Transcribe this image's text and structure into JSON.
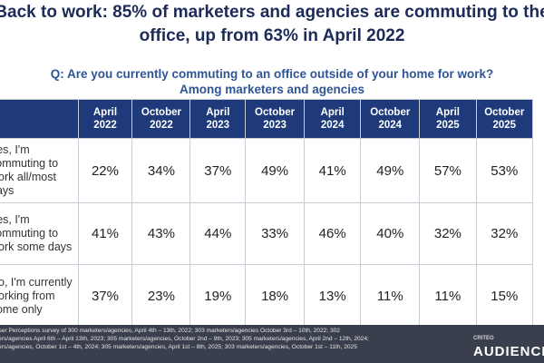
{
  "chart_data": {
    "type": "table",
    "title": "Back to work: 85% of marketers and agencies are commuting to the office, up from 63% in April 2022",
    "question": "Q: Are you currently commuting to an office outside of your home for work?",
    "subtitle": "Among marketers and agencies",
    "columns": [
      "April 2022",
      "October 2022",
      "April 2023",
      "October 2023",
      "April 2024",
      "October 2024",
      "April 2025",
      "October 2025"
    ],
    "rows": [
      {
        "label": "Yes, I'm commuting to work all/most days",
        "values": [
          "22%",
          "34%",
          "37%",
          "49%",
          "41%",
          "49%",
          "57%",
          "53%"
        ]
      },
      {
        "label": "Yes, I'm commuting to work some days",
        "values": [
          "41%",
          "43%",
          "44%",
          "33%",
          "46%",
          "40%",
          "32%",
          "32%"
        ]
      },
      {
        "label": "No, I'm currently working from home only",
        "values": [
          "37%",
          "23%",
          "19%",
          "18%",
          "13%",
          "11%",
          "11%",
          "15%"
        ]
      }
    ]
  },
  "title_lines": [
    "Back to work: 85% of marketers and agencies are commuting to the",
    "office, up from 63% in April 2022"
  ],
  "question_lines": [
    "Q: Are you currently commuting to an office outside of your home for work?",
    "Among marketers and agencies"
  ],
  "column_lines": [
    [
      "April",
      "2022"
    ],
    [
      "October",
      "2022"
    ],
    [
      "April",
      "2023"
    ],
    [
      "October",
      "2023"
    ],
    [
      "April",
      "2024"
    ],
    [
      "October",
      "2024"
    ],
    [
      "April",
      "2025"
    ],
    [
      "October",
      "2025"
    ]
  ],
  "row_label_lines": [
    [
      "Yes, I'm",
      "commuting to",
      "work all/most",
      "days"
    ],
    [
      "Yes, I'm",
      "commuting to",
      "work some days"
    ],
    [
      "No, I'm currently",
      "working from",
      "home only"
    ]
  ],
  "footer": {
    "lines": [
      "Advertiser Perceptions survey of 300 marketers/agencies, April 4th – 13th, 2022; 303 marketers/agencies October 3rd – 10th, 2022; 302",
      "marketers/agencies April 6th – April 13th, 2023; 305 marketers/agencies, October 2nd – 9th, 2023; 305 marketers/agencies, April 2nd – 12th, 2024;",
      "marketers/agencies, October 1st – 4th, 2024; 305 marketers/agencies, April 1st – 8th, 2025; 303 marketers/agencies, October 1st – 11th, 2025"
    ],
    "logo_small": "CRITEO",
    "logo_word": "AUDIENCE"
  }
}
